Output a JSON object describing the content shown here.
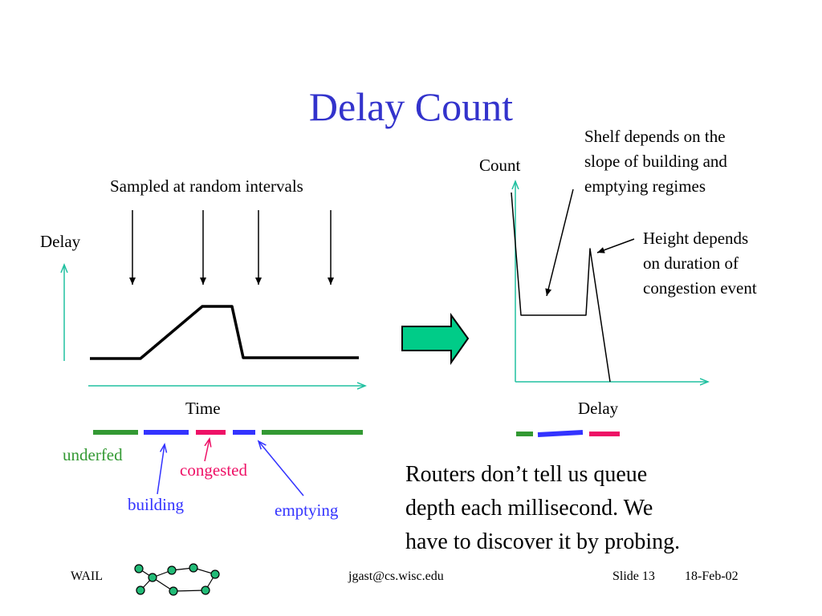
{
  "slide": {
    "title": "Delay Count"
  },
  "left_plot": {
    "sampling_note": "Sampled at random intervals",
    "y_axis_label": "Delay",
    "x_axis_label": "Time"
  },
  "right_plot": {
    "y_axis_label": "Count",
    "x_axis_label": "Delay",
    "shelf_note": "Shelf depends on the\nslope of building and\nemptying regimes",
    "height_note": "Height depends\non duration of\ncongestion event"
  },
  "legend": {
    "underfed": "underfed",
    "congested": "congested",
    "building": "building",
    "emptying": "emptying"
  },
  "colors": {
    "title": "#3333cc",
    "axis": "#20c0a0",
    "underfed": "#339933",
    "building": "#3333ff",
    "congested": "#ee1166",
    "emptying": "#3333ff",
    "transform_arrow": "#00cc88"
  },
  "body_text": "Routers don’t tell us queue\ndepth each millisecond.  We\nhave to discover it by probing.",
  "footer": {
    "org": "WAIL",
    "email": "jgast@cs.wisc.edu",
    "slide_number": "Slide 13",
    "date": "18-Feb-02"
  }
}
